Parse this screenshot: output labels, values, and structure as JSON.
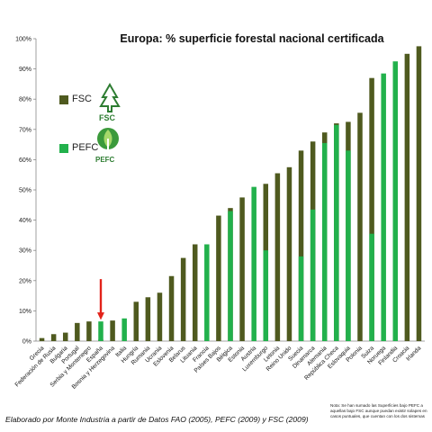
{
  "chart_data": {
    "type": "bar",
    "title": "Europa: % superficie forestal nacional certificada",
    "categories": [
      "Grecia",
      "Federación de Rusia",
      "Bulgaria",
      "Portugal",
      "Serbia y Montenegro",
      "España",
      "Bosnia y Herzegovina",
      "Italia",
      "Hungría",
      "Rumania",
      "Ucrania",
      "Eslovenia",
      "Belarus",
      "Lituania",
      "Francia",
      "Países Bajos",
      "Bélgica",
      "Estonia",
      "Austria",
      "Luxemburgo",
      "Letonia",
      "Reino Unido",
      "Suecia",
      "Dinamarca",
      "Alemania",
      "República Checa",
      "Eslovaquia",
      "Polonia",
      "Suiza",
      "Noruega",
      "Finlandia",
      "Croacia",
      "Irlanda"
    ],
    "series": [
      {
        "name": "FSC",
        "color": "#4f5a1f",
        "values": [
          1,
          2.3,
          2.8,
          6,
          6.5,
          0.5,
          6.8,
          0,
          13,
          14.5,
          16,
          21.5,
          27.5,
          32,
          0,
          41.5,
          44,
          47.5,
          0,
          52,
          55.5,
          57.5,
          63,
          66,
          69,
          72,
          72.5,
          75.5,
          87,
          0,
          0,
          95,
          97.5
        ]
      },
      {
        "name": "PEFC",
        "color": "#22b14c",
        "values": [
          0,
          0,
          0,
          0,
          0,
          6.5,
          0,
          7.5,
          0,
          0,
          0,
          0,
          0,
          0,
          32,
          0,
          43,
          0,
          51,
          30,
          0,
          0,
          28,
          43.5,
          65.5,
          71.5,
          63,
          0,
          35.5,
          88.5,
          92.5,
          0,
          0
        ]
      }
    ],
    "y_ticks": [
      "0%",
      "10%",
      "20%",
      "30%",
      "40%",
      "50%",
      "60%",
      "70%",
      "80%",
      "90%",
      "100%"
    ],
    "ylim": [
      0,
      100
    ],
    "xlabel": "",
    "ylabel": "",
    "grid": false,
    "legend_position": "left",
    "legend": [
      {
        "label": "FSC",
        "icon": "fsc-logo-icon"
      },
      {
        "label": "PEFC",
        "icon": "pefc-logo-icon"
      }
    ],
    "annotation": {
      "category": "España",
      "marker": "red-down-arrow",
      "color": "#e2231a"
    }
  },
  "logos": {
    "fsc_text": "FSC",
    "pefc_text": "PEFC"
  },
  "footer": {
    "source": "Elaborado por Monte Industria a partir de Datos FAO (2005), PEFC (2009) y FSC (2009)",
    "note": "Nota: Se han sumado las Superficies bajo PEFC a aquellas bajo FSC aunque puedan existir solapes en casos puntuales, que cuentan con los dos sistemas"
  }
}
